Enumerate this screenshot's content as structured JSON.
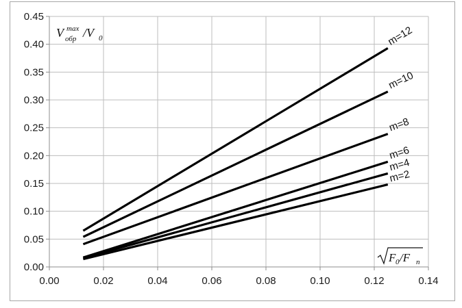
{
  "chart_data": {
    "type": "line",
    "grid": true,
    "xlim": [
      0.0,
      0.14
    ],
    "ylim": [
      0.0,
      0.45
    ],
    "x_ticks": [
      "0.00",
      "0.02",
      "0.04",
      "0.06",
      "0.08",
      "0.10",
      "0.12",
      "0.14"
    ],
    "y_ticks": [
      "0.00",
      "0.05",
      "0.10",
      "0.15",
      "0.20",
      "0.25",
      "0.30",
      "0.35",
      "0.40",
      "0.45"
    ],
    "ylabel": {
      "symbol": "V",
      "superscript": "max",
      "subscript": "обр",
      "divider": "/V",
      "divider_subscript": "0"
    },
    "xlabel": {
      "numerator": "F",
      "numerator_subscript": "0",
      "divider": "/F",
      "divider_subscript": "n"
    },
    "series": [
      {
        "name": "m=12",
        "x": [
          0.0125,
          0.125
        ],
        "y": [
          0.065,
          0.393
        ]
      },
      {
        "name": "m=10",
        "x": [
          0.0125,
          0.125
        ],
        "y": [
          0.054,
          0.315
        ]
      },
      {
        "name": "m=8",
        "x": [
          0.0125,
          0.125
        ],
        "y": [
          0.041,
          0.239
        ]
      },
      {
        "name": "m=6",
        "x": [
          0.0125,
          0.125
        ],
        "y": [
          0.017,
          0.189
        ]
      },
      {
        "name": "m=4",
        "x": [
          0.0125,
          0.125
        ],
        "y": [
          0.016,
          0.168
        ]
      },
      {
        "name": "m=2",
        "x": [
          0.0125,
          0.125
        ],
        "y": [
          0.014,
          0.148
        ]
      }
    ]
  }
}
